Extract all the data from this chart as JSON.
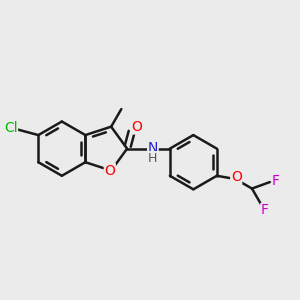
{
  "bg_color": "#ebebeb",
  "bond_color": "#1a1a1a",
  "bond_width": 1.8,
  "atom_colors": {
    "Cl": "#00bb00",
    "O": "#ff0000",
    "N": "#2222cc",
    "F": "#cc00cc"
  },
  "font_size": 10
}
